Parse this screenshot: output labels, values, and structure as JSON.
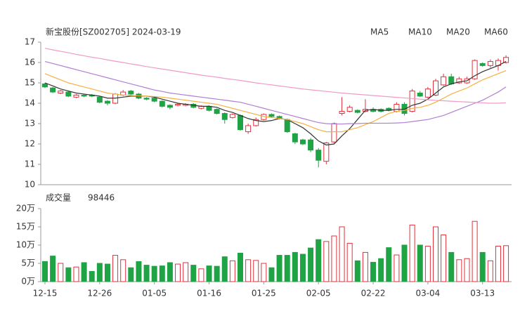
{
  "chart_data": [
    {
      "type": "candlestick",
      "title": "新宝股份[SZ002705] 2024-03-19",
      "up_color": "#e0323c",
      "down_color": "#1ea345",
      "open": [
        14.95,
        14.75,
        14.5,
        14.55,
        14.3,
        14.4,
        14.4,
        14.3,
        14.1,
        14.0,
        14.4,
        14.6,
        14.45,
        14.25,
        14.25,
        14.1,
        13.9,
        13.9,
        13.9,
        13.95,
        13.75,
        13.85,
        13.7,
        13.5,
        13.3,
        13.4,
        12.6,
        12.9,
        13.2,
        13.45,
        13.35,
        13.2,
        12.5,
        12.2,
        12.2,
        11.7,
        11.15,
        12.1,
        13.5,
        13.6,
        13.65,
        13.6,
        13.7,
        13.7,
        13.75,
        13.6,
        13.95,
        13.6,
        14.5,
        14.3,
        14.4,
        14.9,
        15.3,
        15.0,
        15.0,
        15.2,
        15.95,
        15.85,
        15.85,
        16.0
      ],
      "high": [
        15.0,
        14.8,
        14.65,
        14.6,
        14.45,
        14.45,
        14.45,
        14.35,
        14.15,
        14.5,
        14.65,
        14.65,
        14.5,
        14.3,
        14.3,
        14.15,
        13.95,
        14.0,
        14.0,
        14.0,
        13.9,
        13.9,
        13.75,
        13.55,
        13.5,
        13.45,
        13.0,
        13.3,
        13.5,
        13.5,
        13.4,
        13.25,
        12.55,
        12.25,
        12.3,
        11.8,
        12.1,
        13.05,
        14.3,
        13.9,
        13.7,
        14.2,
        13.8,
        13.75,
        13.8,
        14.05,
        14.05,
        14.7,
        14.6,
        14.8,
        15.2,
        15.45,
        15.45,
        15.3,
        15.3,
        16.15,
        16.0,
        16.15,
        16.2,
        16.35
      ],
      "low": [
        14.75,
        14.5,
        14.45,
        14.3,
        14.25,
        14.3,
        14.3,
        14.0,
        13.9,
        13.95,
        14.35,
        14.4,
        14.2,
        14.15,
        14.05,
        13.8,
        13.7,
        13.85,
        13.85,
        13.75,
        13.7,
        13.6,
        13.45,
        13.0,
        13.25,
        12.65,
        12.5,
        12.85,
        13.15,
        13.3,
        13.2,
        12.55,
        12.0,
        11.95,
        11.6,
        10.85,
        11.0,
        12.05,
        13.4,
        13.55,
        13.5,
        13.55,
        13.55,
        13.55,
        13.6,
        13.55,
        13.4,
        13.55,
        14.3,
        14.25,
        14.35,
        14.85,
        14.9,
        14.95,
        14.95,
        15.15,
        15.8,
        15.75,
        15.6,
        15.95
      ],
      "close": [
        14.8,
        14.55,
        14.6,
        14.35,
        14.4,
        14.35,
        14.35,
        14.05,
        14.0,
        14.45,
        14.55,
        14.45,
        14.25,
        14.2,
        14.1,
        13.85,
        13.8,
        13.95,
        13.95,
        13.8,
        13.85,
        13.65,
        13.5,
        13.2,
        13.45,
        12.7,
        12.9,
        13.2,
        13.45,
        13.35,
        13.25,
        12.6,
        12.1,
        12.0,
        11.7,
        11.2,
        12.05,
        13.0,
        13.6,
        13.8,
        13.55,
        13.7,
        13.6,
        13.6,
        13.65,
        13.95,
        13.5,
        14.6,
        14.35,
        14.7,
        15.1,
        15.3,
        14.95,
        15.2,
        15.2,
        16.1,
        15.85,
        16.05,
        16.1,
        16.25
      ],
      "series": [
        {
          "name": "MA5",
          "color": "#333333",
          "values": [
            15.0,
            14.85,
            14.7,
            14.6,
            14.5,
            14.45,
            14.4,
            14.35,
            14.25,
            14.25,
            14.3,
            14.35,
            14.35,
            14.35,
            14.3,
            14.2,
            14.1,
            14.0,
            13.95,
            13.9,
            13.85,
            13.85,
            13.8,
            13.65,
            13.55,
            13.4,
            13.25,
            13.15,
            13.1,
            13.15,
            13.25,
            13.2,
            13.0,
            12.8,
            12.5,
            12.15,
            11.95,
            12.0,
            12.4,
            12.75,
            13.2,
            13.65,
            13.7,
            13.65,
            13.65,
            13.7,
            13.7,
            13.9,
            14.0,
            14.2,
            14.5,
            14.8,
            14.95,
            15.05,
            15.1,
            15.35,
            15.55,
            15.7,
            15.85,
            16.05
          ]
        },
        {
          "name": "MA10",
          "color": "#f5b040",
          "values": [
            15.45,
            15.3,
            15.15,
            15.0,
            14.9,
            14.8,
            14.7,
            14.6,
            14.5,
            14.45,
            14.4,
            14.38,
            14.36,
            14.35,
            14.33,
            14.3,
            14.25,
            14.2,
            14.15,
            14.1,
            14.05,
            14.0,
            13.95,
            13.85,
            13.75,
            13.65,
            13.55,
            13.45,
            13.35,
            13.3,
            13.25,
            13.2,
            13.1,
            13.0,
            12.85,
            12.7,
            12.6,
            12.6,
            12.6,
            12.7,
            12.8,
            12.95,
            13.1,
            13.3,
            13.5,
            13.6,
            13.65,
            13.75,
            13.8,
            13.9,
            14.05,
            14.25,
            14.45,
            14.6,
            14.75,
            14.95,
            15.15,
            15.3,
            15.45,
            15.6
          ]
        },
        {
          "name": "MA20",
          "color": "#b07ed6",
          "values": [
            16.05,
            15.95,
            15.85,
            15.75,
            15.65,
            15.55,
            15.45,
            15.35,
            15.25,
            15.15,
            15.05,
            14.95,
            14.85,
            14.75,
            14.65,
            14.58,
            14.5,
            14.45,
            14.4,
            14.35,
            14.3,
            14.25,
            14.2,
            14.15,
            14.1,
            14.05,
            13.95,
            13.85,
            13.75,
            13.65,
            13.55,
            13.45,
            13.35,
            13.25,
            13.15,
            13.05,
            13.0,
            12.98,
            12.98,
            13.0,
            13.0,
            13.02,
            13.02,
            13.02,
            13.02,
            13.03,
            13.05,
            13.1,
            13.15,
            13.2,
            13.3,
            13.4,
            13.55,
            13.7,
            13.85,
            14.0,
            14.15,
            14.35,
            14.55,
            14.8
          ]
        },
        {
          "name": "MA60",
          "color": "#f19ac6",
          "values": [
            16.7,
            16.62,
            16.55,
            16.48,
            16.4,
            16.33,
            16.26,
            16.2,
            16.13,
            16.06,
            16.0,
            15.93,
            15.87,
            15.8,
            15.74,
            15.68,
            15.62,
            15.56,
            15.5,
            15.44,
            15.38,
            15.33,
            15.28,
            15.22,
            15.17,
            15.12,
            15.06,
            15.0,
            14.95,
            14.9,
            14.85,
            14.8,
            14.75,
            14.7,
            14.66,
            14.62,
            14.58,
            14.54,
            14.5,
            14.47,
            14.44,
            14.41,
            14.38,
            14.35,
            14.32,
            14.29,
            14.26,
            14.23,
            14.2,
            14.17,
            14.14,
            14.12,
            14.1,
            14.08,
            14.06,
            14.04,
            14.02,
            14.0,
            14.0,
            14.02
          ]
        }
      ],
      "ylim": [
        10,
        17
      ],
      "yticks": [
        10,
        11,
        12,
        13,
        14,
        15,
        16,
        17
      ]
    },
    {
      "type": "bar",
      "title": "成交量",
      "latest": 98446,
      "categories": [
        "12-15",
        null,
        null,
        null,
        null,
        null,
        null,
        "12-26",
        null,
        null,
        null,
        null,
        null,
        null,
        "01-05",
        null,
        null,
        null,
        null,
        null,
        null,
        "01-16",
        null,
        null,
        null,
        null,
        null,
        null,
        "01-25",
        null,
        null,
        null,
        null,
        null,
        null,
        "02-05",
        null,
        null,
        null,
        null,
        null,
        null,
        "02-22",
        null,
        null,
        null,
        null,
        null,
        null,
        "03-04",
        null,
        null,
        null,
        null,
        null,
        null,
        "03-13",
        null,
        null,
        null
      ],
      "values": [
        55000,
        70000,
        50000,
        38000,
        40000,
        52000,
        28000,
        50000,
        48000,
        72000,
        60000,
        38000,
        55000,
        45000,
        42000,
        43000,
        52000,
        48000,
        52000,
        45000,
        35000,
        43000,
        42000,
        68000,
        57000,
        78000,
        60000,
        58000,
        50000,
        38000,
        72000,
        72000,
        80000,
        75000,
        92000,
        115000,
        110000,
        125000,
        150000,
        105000,
        57000,
        80000,
        53000,
        63000,
        93000,
        73000,
        100000,
        155000,
        100000,
        97000,
        150000,
        128000,
        80000,
        60000,
        63000,
        165000,
        80000,
        57000,
        97000,
        98446
      ],
      "ylim": [
        0,
        200000
      ],
      "yticks": [
        {
          "value": 0,
          "label": "0万"
        },
        {
          "value": 50000,
          "label": "5万"
        },
        {
          "value": 100000,
          "label": "10万"
        },
        {
          "value": 150000,
          "label": "15万"
        },
        {
          "value": 200000,
          "label": "20万"
        }
      ],
      "category_color": "#d9363e"
    }
  ]
}
